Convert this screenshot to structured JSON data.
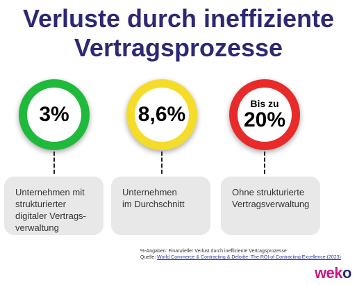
{
  "title_line1": "Verluste durch ineffiziente",
  "title_line2": "Vertragsprozesse",
  "chart_data": {
    "type": "table",
    "title": "Verluste durch ineffiziente Vertragsprozesse",
    "items": [
      {
        "prefix": "",
        "value_label": "3%",
        "value": 3,
        "color": "#1fba3c",
        "description": "Unternehmen mit\nstrukturierter\ndigitaler Vertrags-\nverwaltung"
      },
      {
        "prefix": "",
        "value_label": "8,6%",
        "value": 8.6,
        "color": "#f5dc2a",
        "description": "Unternehmen\nim Durchschnitt"
      },
      {
        "prefix": "Bis zu",
        "value_label": "20%",
        "value": 20,
        "color": "#e82a2a",
        "description": "Ohne strukturierte\nVertragsverwaltung"
      }
    ]
  },
  "footnote": "%-Angaben: Finanzieller Verlust durch ineffiziente Vertragsprozesse",
  "source_prefix": "Quelle: ",
  "source_link": "World Commerce & Contracting & Deloitte: The ROI of Contracting Excellence (2023)",
  "logo_part1": "we",
  "logo_part2": "k",
  "logo_part3": "o"
}
